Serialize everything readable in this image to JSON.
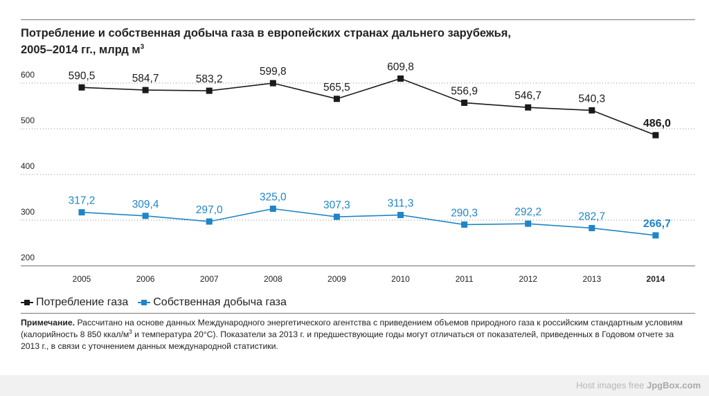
{
  "header": {
    "title_line1": "Потребление и собственная добыча газа в европейских странах дальнего зарубежья,",
    "title_line2": "2005–2014 гг., млрд м",
    "title_sup": "3"
  },
  "chart_data": {
    "type": "line",
    "categories": [
      "2005",
      "2006",
      "2007",
      "2008",
      "2009",
      "2010",
      "2011",
      "2012",
      "2013",
      "2014"
    ],
    "highlight_category": "2014",
    "y_ticks": [
      200,
      300,
      400,
      500,
      600
    ],
    "ylim": [
      180,
      640
    ],
    "grid": "dotted horizontal",
    "legend_position": "bottom-left",
    "series": [
      {
        "name": "Потребление газа",
        "color": "#1a1a1a",
        "values": [
          590.5,
          584.7,
          583.2,
          599.8,
          565.5,
          609.8,
          556.9,
          546.7,
          540.3,
          486.0
        ],
        "labels": [
          "590,5",
          "584,7",
          "583,2",
          "599,8",
          "565,5",
          "609,8",
          "556,9",
          "546,7",
          "540,3",
          "486,0"
        ]
      },
      {
        "name": "Собственная добыча газа",
        "color": "#1f85c6",
        "values": [
          317.2,
          309.4,
          297.0,
          325.0,
          307.3,
          311.3,
          290.3,
          292.2,
          282.7,
          266.7
        ],
        "labels": [
          "317,2",
          "309,4",
          "297,0",
          "325,0",
          "307,3",
          "311,3",
          "290,3",
          "292,2",
          "282,7",
          "266,7"
        ]
      }
    ]
  },
  "note": {
    "label": "Примечание.",
    "text_part1": " Рассчитано на основе данных Международного энергетического агентства с приведением объемов природного газа к российским стандартным условиям (калорийность 8 850 ккал/м",
    "sup": "3",
    "text_part2": " и температура 20°С). Показатели за 2013 г. и предшествующие годы могут отличаться от показателей, приведенных в Годовом отчете за 2013 г., в связи с уточнением данных международной статистики."
  },
  "footer": {
    "prefix": "Host images free ",
    "brand": "JpgBox.com"
  }
}
